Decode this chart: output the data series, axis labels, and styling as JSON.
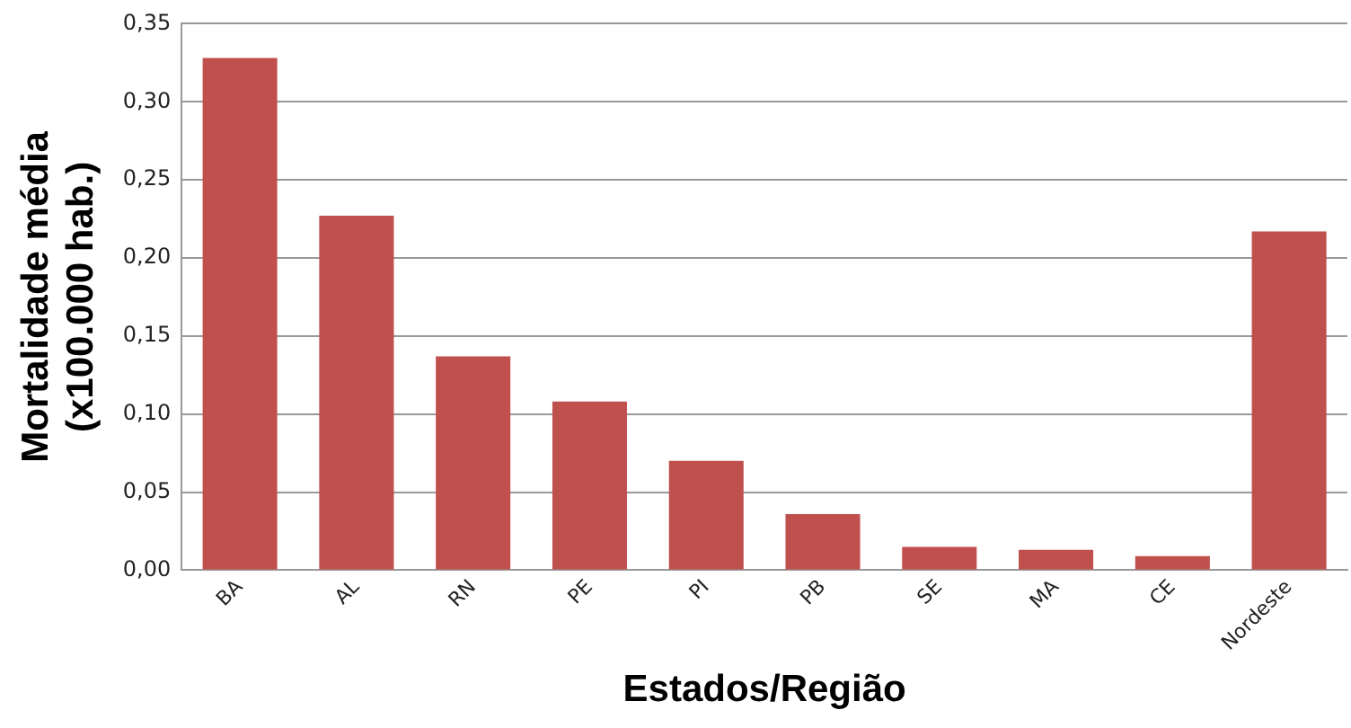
{
  "chart_data": {
    "type": "bar",
    "xlabel": "Estados/Região",
    "ylabel": "Mortalidade média\n(x100.000 hab.)",
    "categories": [
      "BA",
      "AL",
      "RN",
      "PE",
      "PI",
      "PB",
      "SE",
      "MA",
      "CE",
      "Nordeste"
    ],
    "values": [
      0.328,
      0.227,
      0.137,
      0.108,
      0.07,
      0.036,
      0.015,
      0.013,
      0.009,
      0.217
    ],
    "color": "#c0504d",
    "ylim": [
      0,
      0.35
    ],
    "yticks": [
      {
        "value": 0,
        "label": "0,00"
      },
      {
        "value": 0.05,
        "label": "0,05"
      },
      {
        "value": 0.1,
        "label": "0,10"
      },
      {
        "value": 0.15,
        "label": "0,15"
      },
      {
        "value": 0.2,
        "label": "0,20"
      },
      {
        "value": 0.25,
        "label": "0,25"
      },
      {
        "value": 0.3,
        "label": "0,30"
      },
      {
        "value": 0.35,
        "label": "0,35"
      }
    ],
    "grid": "y",
    "legend": false
  }
}
